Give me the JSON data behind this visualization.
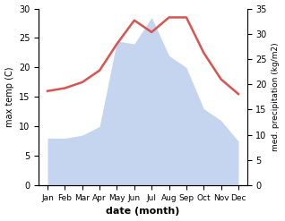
{
  "months": [
    "Jan",
    "Feb",
    "Mar",
    "Apr",
    "May",
    "Jun",
    "Jul",
    "Aug",
    "Sep",
    "Oct",
    "Nov",
    "Dec"
  ],
  "x": [
    1,
    2,
    3,
    4,
    5,
    6,
    7,
    8,
    9,
    10,
    11,
    12
  ],
  "temperature": [
    16.0,
    16.5,
    17.5,
    19.5,
    24.0,
    28.0,
    26.0,
    28.5,
    28.5,
    22.5,
    18.0,
    15.5
  ],
  "precipitation": [
    8.0,
    8.0,
    8.5,
    10.0,
    24.5,
    24.0,
    28.5,
    22.0,
    20.0,
    13.0,
    11.0,
    7.5
  ],
  "temp_color": "#d9534f",
  "precip_color": "#c5d5f0",
  "ylabel_left": "max temp (C)",
  "ylabel_right": "med. precipitation (kg/m2)",
  "xlabel": "date (month)",
  "ylim_left": [
    0,
    30
  ],
  "ylim_right": [
    0,
    35
  ],
  "yticks_left": [
    0,
    5,
    10,
    15,
    20,
    25,
    30
  ],
  "yticks_right": [
    0,
    5,
    10,
    15,
    20,
    25,
    30,
    35
  ],
  "bg_color": "#ffffff",
  "temp_linewidth": 1.8,
  "xlim": [
    0.5,
    12.5
  ]
}
